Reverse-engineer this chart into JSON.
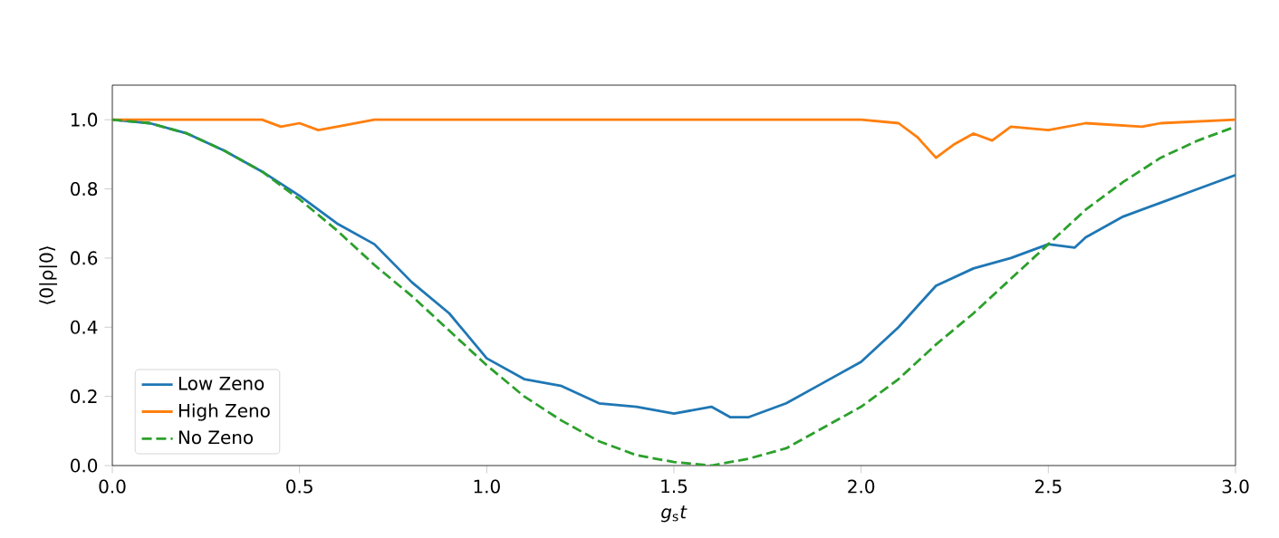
{
  "chart_data": {
    "type": "line",
    "xlabel": "*g*$_{s}$*t*",
    "ylabel": "⟨0|ρ|0⟩",
    "xlim": [
      0,
      3.0
    ],
    "ylim": [
      0,
      1.1
    ],
    "xticks": [
      {
        "value": 0,
        "label": "0.0"
      },
      0.5,
      {
        "value": 1,
        "label": "1.0"
      },
      1.5,
      {
        "value": 2,
        "label": "2.0"
      },
      2.5,
      {
        "value": 3,
        "label": "3.0"
      }
    ],
    "yticks": [
      {
        "value": 0,
        "label": "0.0"
      },
      0.2,
      0.4,
      0.6,
      0.8,
      {
        "value": 1,
        "label": "1.0"
      }
    ],
    "legend": "bottom left",
    "grid": false,
    "series": [
      {
        "name": "Low Zeno",
        "color": "#1f77b4",
        "x": [
          0,
          0.1,
          0.2,
          0.3,
          0.4,
          0.5,
          0.6,
          0.7,
          0.8,
          0.9,
          1.0,
          1.1,
          1.2,
          1.3,
          1.4,
          1.5,
          1.6,
          1.65,
          1.7,
          1.8,
          1.9,
          2.0,
          2.1,
          2.2,
          2.3,
          2.4,
          2.5,
          2.57,
          2.6,
          2.7,
          2.8,
          2.9,
          3.0
        ],
        "values": [
          1.0,
          0.99,
          0.96,
          0.91,
          0.85,
          0.78,
          0.7,
          0.64,
          0.53,
          0.44,
          0.31,
          0.25,
          0.23,
          0.18,
          0.17,
          0.15,
          0.17,
          0.14,
          0.14,
          0.18,
          0.24,
          0.3,
          0.4,
          0.52,
          0.57,
          0.6,
          0.64,
          0.63,
          0.66,
          0.72,
          0.76,
          0.8,
          0.84
        ]
      },
      {
        "name": "High Zeno",
        "color": "#ff7f0e",
        "x": [
          0,
          0.4,
          0.45,
          0.5,
          0.55,
          0.6,
          0.7,
          1.0,
          1.5,
          2.0,
          2.1,
          2.15,
          2.2,
          2.25,
          2.3,
          2.35,
          2.4,
          2.5,
          2.6,
          2.75,
          2.8,
          3.0
        ],
        "values": [
          1.0,
          1.0,
          0.98,
          0.99,
          0.97,
          0.98,
          1.0,
          1.0,
          1.0,
          1.0,
          0.99,
          0.95,
          0.89,
          0.93,
          0.96,
          0.94,
          0.98,
          0.97,
          0.99,
          0.98,
          0.99,
          1.0
        ]
      },
      {
        "name": "No Zeno",
        "color": "#2ca02c",
        "line_style": "dashed",
        "x": [
          0,
          0.1,
          0.2,
          0.3,
          0.4,
          0.5,
          0.6,
          0.7,
          0.8,
          0.9,
          1.0,
          1.1,
          1.2,
          1.3,
          1.4,
          1.5,
          1.6,
          1.7,
          1.8,
          1.9,
          2.0,
          2.1,
          2.2,
          2.3,
          2.4,
          2.5,
          2.6,
          2.7,
          2.8,
          2.9,
          3.0
        ],
        "values": [
          1.0,
          0.99,
          0.96,
          0.91,
          0.85,
          0.77,
          0.68,
          0.58,
          0.49,
          0.39,
          0.29,
          0.2,
          0.13,
          0.07,
          0.03,
          0.01,
          0.0,
          0.02,
          0.05,
          0.11,
          0.17,
          0.25,
          0.35,
          0.44,
          0.54,
          0.64,
          0.74,
          0.82,
          0.89,
          0.94,
          0.98
        ]
      }
    ]
  }
}
